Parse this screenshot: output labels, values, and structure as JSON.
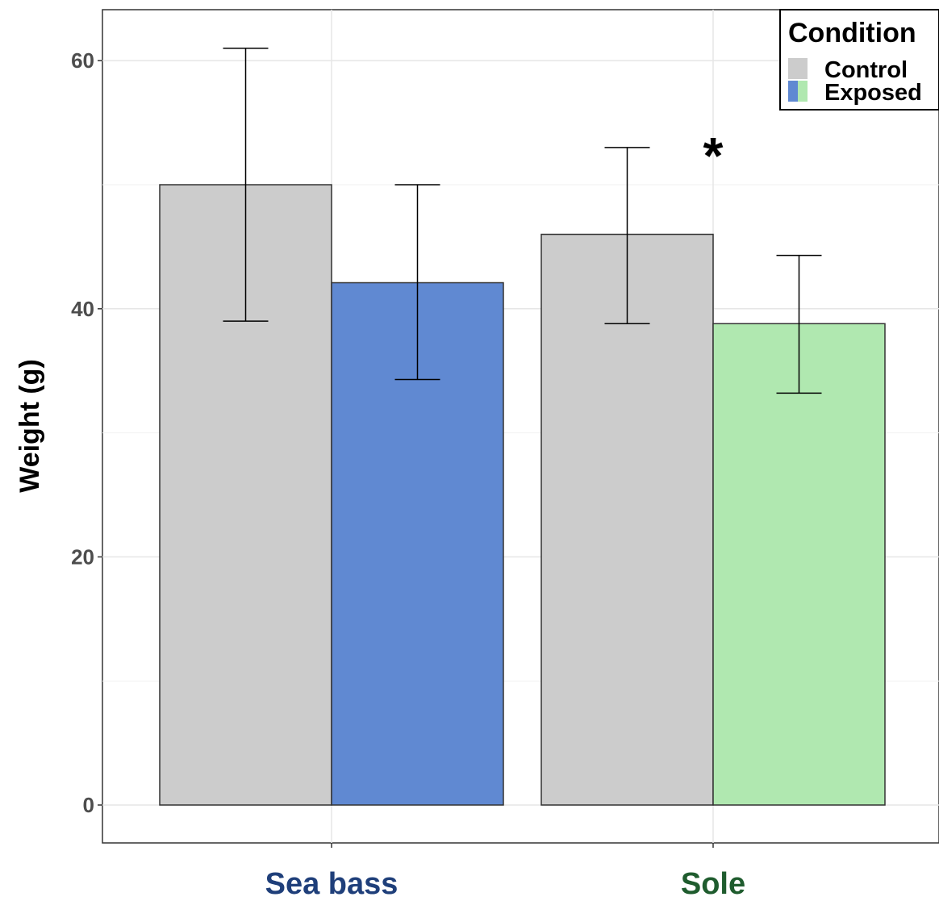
{
  "chart_data": {
    "type": "bar",
    "categories": [
      "Sea bass",
      "Sole"
    ],
    "category_colors": [
      "#1f3f7a",
      "#1f5c2e"
    ],
    "ylabel": "Weight (g)",
    "ylim": [
      -3,
      64
    ],
    "yticks": [
      0,
      20,
      40,
      60
    ],
    "grid": true,
    "legend": {
      "title": "Condition",
      "placement": "top-right",
      "entries": [
        {
          "label": "Control",
          "colors": [
            "#cccccc",
            "#cccccc"
          ]
        },
        {
          "label": "Exposed",
          "colors": [
            "#6089d2",
            "#b0e8b0"
          ]
        }
      ]
    },
    "bars": [
      {
        "category": "Sea bass",
        "condition": "Control",
        "value": 50.0,
        "error_low": 39.0,
        "error_high": 61.0,
        "color": "#cccccc"
      },
      {
        "category": "Sea bass",
        "condition": "Exposed",
        "value": 42.1,
        "error_low": 34.3,
        "error_high": 50.0,
        "color": "#6089d2"
      },
      {
        "category": "Sole",
        "condition": "Control",
        "value": 46.0,
        "error_low": 38.8,
        "error_high": 53.0,
        "color": "#cccccc"
      },
      {
        "category": "Sole",
        "condition": "Exposed",
        "value": 38.8,
        "error_low": 33.2,
        "error_high": 44.3,
        "color": "#b0e8b0"
      }
    ],
    "annotations": [
      {
        "text": "*",
        "category": "Sole",
        "y": 53.5
      }
    ]
  }
}
